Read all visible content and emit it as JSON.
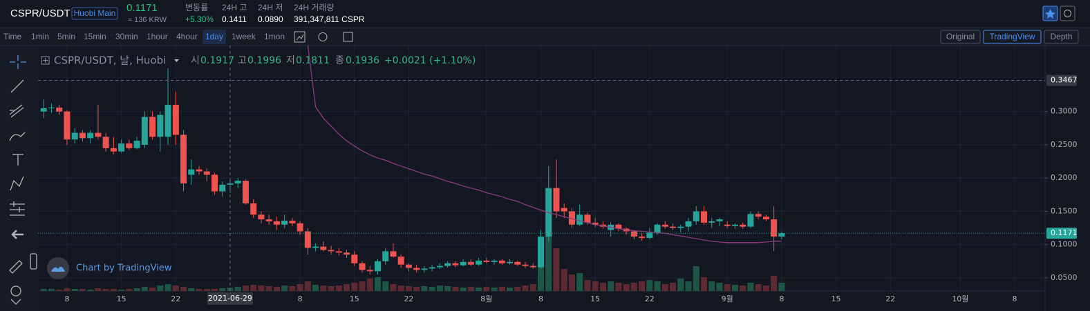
{
  "header": {
    "pair": "CSPR/USDT",
    "exchange": "Huobi Main",
    "price": "0.1171",
    "krw": "≈ 136 KRW",
    "stats": [
      {
        "label": "변동률",
        "value": "+5.30%"
      },
      {
        "label": "24H 고",
        "value": "0.1411"
      },
      {
        "label": "24H 저",
        "value": "0.0890"
      },
      {
        "label": "24H 거래량",
        "value": "391,347,811 CSPR"
      }
    ]
  },
  "toolbar": {
    "intervals": [
      "Time",
      "1min",
      "5min",
      "15min",
      "30min",
      "1hour",
      "4hour",
      "1day",
      "1week",
      "1mon"
    ],
    "active": "1day",
    "views": [
      "Original",
      "TradingView",
      "Depth"
    ],
    "active_view": "TradingView"
  },
  "legend": {
    "symbol": "CSPR/USDT, 날, Huobi",
    "items": [
      {
        "label": "시",
        "value": "0.1917"
      },
      {
        "label": "고",
        "value": "0.1996"
      },
      {
        "label": "저",
        "value": "0.1811"
      },
      {
        "label": "종",
        "value": "0.1936"
      }
    ],
    "change": "+0.0021 (+1.10%)"
  },
  "branding": "Chart by TradingView",
  "chart_data": {
    "type": "candlestick",
    "up_color": "#26a69a",
    "down_color": "#ef5350",
    "ma_color": "#8e3a7e",
    "x": [
      "2021-06-05",
      "2021-06-06",
      "2021-06-07",
      "2021-06-08",
      "2021-06-09",
      "2021-06-10",
      "2021-06-11",
      "2021-06-12",
      "2021-06-13",
      "2021-06-14",
      "2021-06-15",
      "2021-06-16",
      "2021-06-17",
      "2021-06-18",
      "2021-06-19",
      "2021-06-20",
      "2021-06-21",
      "2021-06-22",
      "2021-06-23",
      "2021-06-24",
      "2021-06-25",
      "2021-06-26",
      "2021-06-27",
      "2021-06-28",
      "2021-06-29",
      "2021-06-30",
      "2021-07-01",
      "2021-07-02",
      "2021-07-03",
      "2021-07-04",
      "2021-07-05",
      "2021-07-06",
      "2021-07-07",
      "2021-07-08",
      "2021-07-09",
      "2021-07-10",
      "2021-07-11",
      "2021-07-12",
      "2021-07-13",
      "2021-07-14",
      "2021-07-15",
      "2021-07-16",
      "2021-07-17",
      "2021-07-18",
      "2021-07-19",
      "2021-07-20",
      "2021-07-21",
      "2021-07-22",
      "2021-07-23",
      "2021-07-24",
      "2021-07-25",
      "2021-07-26",
      "2021-07-27",
      "2021-07-28",
      "2021-07-29",
      "2021-07-30",
      "2021-07-31",
      "2021-08-01",
      "2021-08-02",
      "2021-08-03",
      "2021-08-04",
      "2021-08-05",
      "2021-08-06",
      "2021-08-07",
      "2021-08-08",
      "2021-08-09",
      "2021-08-10",
      "2021-08-11",
      "2021-08-12",
      "2021-08-13",
      "2021-08-14",
      "2021-08-15",
      "2021-08-16",
      "2021-08-17",
      "2021-08-18",
      "2021-08-19",
      "2021-08-20",
      "2021-08-21",
      "2021-08-22",
      "2021-08-23",
      "2021-08-24",
      "2021-08-25",
      "2021-08-26",
      "2021-08-27",
      "2021-08-28",
      "2021-08-29",
      "2021-08-30",
      "2021-08-31",
      "2021-09-01",
      "2021-09-02",
      "2021-09-03",
      "2021-09-04",
      "2021-09-05",
      "2021-09-06",
      "2021-09-07",
      "2021-09-08"
    ],
    "ohlc": [
      [
        0.3,
        0.318,
        0.29,
        0.305
      ],
      [
        0.305,
        0.312,
        0.298,
        0.306
      ],
      [
        0.306,
        0.31,
        0.295,
        0.3
      ],
      [
        0.3,
        0.302,
        0.25,
        0.258
      ],
      [
        0.258,
        0.275,
        0.252,
        0.268
      ],
      [
        0.268,
        0.272,
        0.255,
        0.26
      ],
      [
        0.26,
        0.272,
        0.252,
        0.268
      ],
      [
        0.268,
        0.31,
        0.258,
        0.262
      ],
      [
        0.262,
        0.268,
        0.24,
        0.245
      ],
      [
        0.245,
        0.262,
        0.236,
        0.24
      ],
      [
        0.24,
        0.258,
        0.238,
        0.252
      ],
      [
        0.252,
        0.258,
        0.242,
        0.245
      ],
      [
        0.245,
        0.262,
        0.243,
        0.256
      ],
      [
        0.25,
        0.3,
        0.245,
        0.292
      ],
      [
        0.292,
        0.3,
        0.258,
        0.262
      ],
      [
        0.262,
        0.3,
        0.24,
        0.295
      ],
      [
        0.262,
        0.365,
        0.25,
        0.31
      ],
      [
        0.31,
        0.33,
        0.25,
        0.265
      ],
      [
        0.265,
        0.272,
        0.18,
        0.192
      ],
      [
        0.205,
        0.228,
        0.19,
        0.213
      ],
      [
        0.213,
        0.218,
        0.205,
        0.21
      ],
      [
        0.21,
        0.215,
        0.195,
        0.205
      ],
      [
        0.205,
        0.208,
        0.175,
        0.18
      ],
      [
        0.18,
        0.195,
        0.172,
        0.19
      ],
      [
        0.19,
        0.198,
        0.178,
        0.192
      ],
      [
        0.192,
        0.2,
        0.185,
        0.196
      ],
      [
        0.196,
        0.198,
        0.16,
        0.162
      ],
      [
        0.162,
        0.168,
        0.14,
        0.145
      ],
      [
        0.145,
        0.15,
        0.132,
        0.138
      ],
      [
        0.138,
        0.145,
        0.13,
        0.135
      ],
      [
        0.135,
        0.142,
        0.122,
        0.13
      ],
      [
        0.13,
        0.145,
        0.125,
        0.136
      ],
      [
        0.136,
        0.14,
        0.128,
        0.132
      ],
      [
        0.132,
        0.135,
        0.115,
        0.12
      ],
      [
        0.12,
        0.125,
        0.085,
        0.095
      ],
      [
        0.095,
        0.102,
        0.09,
        0.097
      ],
      [
        0.097,
        0.105,
        0.09,
        0.092
      ],
      [
        0.092,
        0.098,
        0.085,
        0.09
      ],
      [
        0.09,
        0.095,
        0.084,
        0.088
      ],
      [
        0.088,
        0.092,
        0.08,
        0.085
      ],
      [
        0.085,
        0.09,
        0.068,
        0.072
      ],
      [
        0.072,
        0.075,
        0.058,
        0.062
      ],
      [
        0.062,
        0.068,
        0.055,
        0.06
      ],
      [
        0.06,
        0.078,
        0.055,
        0.075
      ],
      [
        0.075,
        0.095,
        0.07,
        0.09
      ],
      [
        0.09,
        0.102,
        0.08,
        0.082
      ],
      [
        0.082,
        0.085,
        0.065,
        0.07
      ],
      [
        0.07,
        0.072,
        0.06,
        0.065
      ],
      [
        0.065,
        0.07,
        0.058,
        0.062
      ],
      [
        0.062,
        0.068,
        0.058,
        0.064
      ],
      [
        0.064,
        0.07,
        0.06,
        0.066
      ],
      [
        0.066,
        0.072,
        0.063,
        0.068
      ],
      [
        0.068,
        0.075,
        0.065,
        0.072
      ],
      [
        0.072,
        0.075,
        0.066,
        0.069
      ],
      [
        0.069,
        0.078,
        0.067,
        0.074
      ],
      [
        0.074,
        0.078,
        0.068,
        0.07
      ],
      [
        0.07,
        0.08,
        0.068,
        0.076
      ],
      [
        0.076,
        0.08,
        0.072,
        0.074
      ],
      [
        0.074,
        0.078,
        0.07,
        0.076
      ],
      [
        0.076,
        0.078,
        0.07,
        0.072
      ],
      [
        0.072,
        0.078,
        0.07,
        0.074
      ],
      [
        0.074,
        0.076,
        0.068,
        0.07
      ],
      [
        0.07,
        0.074,
        0.065,
        0.068
      ],
      [
        0.068,
        0.072,
        0.064,
        0.066
      ],
      [
        0.066,
        0.122,
        0.064,
        0.112
      ],
      [
        0.112,
        0.218,
        0.105,
        0.185
      ],
      [
        0.185,
        0.228,
        0.14,
        0.15
      ],
      [
        0.155,
        0.162,
        0.14,
        0.15
      ],
      [
        0.15,
        0.155,
        0.125,
        0.13
      ],
      [
        0.13,
        0.16,
        0.128,
        0.145
      ],
      [
        0.145,
        0.148,
        0.13,
        0.133
      ],
      [
        0.133,
        0.14,
        0.126,
        0.13
      ],
      [
        0.13,
        0.135,
        0.124,
        0.127
      ],
      [
        0.122,
        0.134,
        0.112,
        0.13
      ],
      [
        0.13,
        0.132,
        0.12,
        0.124
      ],
      [
        0.124,
        0.126,
        0.115,
        0.12
      ],
      [
        0.12,
        0.122,
        0.108,
        0.112
      ],
      [
        0.112,
        0.118,
        0.106,
        0.11
      ],
      [
        0.11,
        0.125,
        0.108,
        0.118
      ],
      [
        0.118,
        0.132,
        0.115,
        0.13
      ],
      [
        0.13,
        0.135,
        0.124,
        0.127
      ],
      [
        0.127,
        0.132,
        0.122,
        0.125
      ],
      [
        0.125,
        0.13,
        0.118,
        0.127
      ],
      [
        0.127,
        0.14,
        0.12,
        0.135
      ],
      [
        0.135,
        0.158,
        0.13,
        0.15
      ],
      [
        0.15,
        0.158,
        0.13,
        0.133
      ],
      [
        0.133,
        0.14,
        0.125,
        0.135
      ],
      [
        0.135,
        0.14,
        0.128,
        0.138
      ],
      [
        0.13,
        0.135,
        0.125,
        0.128
      ],
      [
        0.128,
        0.132,
        0.124,
        0.13
      ],
      [
        0.13,
        0.133,
        0.124,
        0.127
      ],
      [
        0.127,
        0.15,
        0.125,
        0.146
      ],
      [
        0.146,
        0.15,
        0.138,
        0.142
      ],
      [
        0.142,
        0.145,
        0.135,
        0.138
      ],
      [
        0.138,
        0.158,
        0.09,
        0.112
      ],
      [
        0.112,
        0.12,
        0.108,
        0.1171
      ]
    ],
    "volume": [
      3,
      3,
      2,
      4,
      3,
      3,
      2,
      4,
      3,
      3,
      2,
      3,
      4,
      6,
      5,
      8,
      10,
      8,
      6,
      4,
      3,
      3,
      3,
      4,
      5,
      6,
      8,
      9,
      8,
      7,
      6,
      8,
      7,
      10,
      14,
      9,
      8,
      7,
      8,
      10,
      12,
      14,
      18,
      20,
      14,
      10,
      8,
      7,
      6,
      7,
      6,
      8,
      7,
      6,
      5,
      6,
      5,
      6,
      5,
      6,
      5,
      6,
      8,
      10,
      62,
      80,
      62,
      32,
      24,
      26,
      16,
      14,
      12,
      14,
      12,
      10,
      12,
      14,
      16,
      14,
      10,
      12,
      18,
      14,
      36,
      20,
      14,
      12,
      10,
      9,
      8,
      12,
      10,
      8,
      22,
      12
    ],
    "vlim": [
      0,
      100
    ],
    "ma": [
      null,
      null,
      null,
      null,
      null,
      null,
      null,
      null,
      null,
      null,
      null,
      null,
      null,
      null,
      null,
      null,
      null,
      null,
      null,
      null,
      null,
      null,
      null,
      null,
      null,
      null,
      null,
      null,
      null,
      null,
      null,
      null,
      null,
      null,
      0.4,
      0.307,
      0.29,
      0.278,
      0.266,
      0.256,
      0.248,
      0.241,
      0.235,
      0.23,
      0.227,
      0.222,
      0.218,
      0.214,
      0.21,
      0.206,
      0.203,
      0.199,
      0.195,
      0.192,
      0.188,
      0.185,
      0.182,
      0.178,
      0.175,
      0.172,
      0.168,
      0.165,
      0.16,
      0.156,
      0.152,
      0.148,
      0.145,
      0.142,
      0.139,
      0.136,
      0.133,
      0.13,
      0.128,
      0.126,
      0.124,
      0.122,
      0.121,
      0.12,
      0.119,
      0.118,
      0.117,
      0.115,
      0.113,
      0.111,
      0.109,
      0.107,
      0.105,
      0.104,
      0.103,
      0.103,
      0.103,
      0.103,
      0.103,
      0.104,
      0.105,
      0.105
    ],
    "xlim": [
      "2021-06-04",
      "2021-10-12"
    ],
    "xticks": [
      {
        "value": "2021-06-08",
        "label": "8"
      },
      {
        "value": "2021-06-15",
        "label": "15"
      },
      {
        "value": "2021-06-22",
        "label": "22"
      },
      {
        "value": "2021-07-08",
        "label": "8"
      },
      {
        "value": "2021-07-15",
        "label": "15"
      },
      {
        "value": "2021-07-22",
        "label": "22"
      },
      {
        "value": "2021-08-01",
        "label": "8월"
      },
      {
        "value": "2021-08-08",
        "label": "8"
      },
      {
        "value": "2021-08-15",
        "label": "15"
      },
      {
        "value": "2021-08-22",
        "label": "22"
      },
      {
        "value": "2021-09-01",
        "label": "9월"
      },
      {
        "value": "2021-09-08",
        "label": "8"
      },
      {
        "value": "2021-09-15",
        "label": "15"
      },
      {
        "value": "2021-09-22",
        "label": "22"
      },
      {
        "value": "2021-10-01",
        "label": "10월"
      },
      {
        "value": "2021-10-08",
        "label": "8"
      }
    ],
    "ylim": [
      0.0303,
      0.3992
    ],
    "yticks": [
      {
        "value": 0.05,
        "label": "0.0500"
      },
      {
        "value": 0.1,
        "label": "0.1000"
      },
      {
        "value": 0.15,
        "label": "0.1500"
      },
      {
        "value": 0.2,
        "label": "0.2000"
      },
      {
        "value": 0.25,
        "label": "0.2500"
      },
      {
        "value": 0.3,
        "label": "0.3000"
      }
    ],
    "grid": true,
    "crosshair": {
      "x": "2021-06-29",
      "y": {
        "value": 0.3467,
        "label": "0.3467"
      }
    },
    "last_price": 0.1171
  }
}
